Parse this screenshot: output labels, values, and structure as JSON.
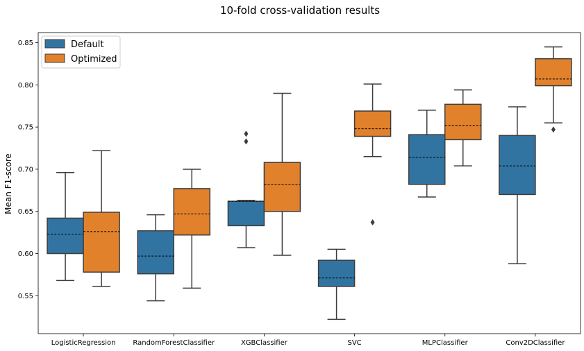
{
  "chart_data": {
    "type": "box",
    "title": "10-fold cross-validation results",
    "xlabel": "",
    "ylabel": "Mean F1-score",
    "ylim": [
      0.505,
      0.862
    ],
    "yticks": [
      "0.55",
      "0.60",
      "0.65",
      "0.70",
      "0.75",
      "0.80",
      "0.85"
    ],
    "ytick_values": [
      0.55,
      0.6,
      0.65,
      0.7,
      0.75,
      0.8,
      0.85
    ],
    "categories": [
      "LogisticRegression",
      "RandomForestClassifier",
      "XGBClassifier",
      "SVC",
      "MLPClassifier",
      "Conv2DClassifier"
    ],
    "legend_position": "top-left",
    "grid": false,
    "series": [
      {
        "name": "Default",
        "color": "#3274a1",
        "boxes": [
          {
            "whislo": 0.568,
            "q1": 0.6,
            "mean": 0.623,
            "q3": 0.642,
            "whishi": 0.696,
            "fliers": []
          },
          {
            "whislo": 0.544,
            "q1": 0.576,
            "mean": 0.597,
            "q3": 0.627,
            "whishi": 0.646,
            "fliers": []
          },
          {
            "whislo": 0.607,
            "q1": 0.633,
            "mean": 0.662,
            "q3": 0.662,
            "whishi": 0.663,
            "fliers": [
              0.733,
              0.742
            ]
          },
          {
            "whislo": 0.522,
            "q1": 0.561,
            "mean": 0.571,
            "q3": 0.592,
            "whishi": 0.605,
            "fliers": []
          },
          {
            "whislo": 0.667,
            "q1": 0.682,
            "mean": 0.714,
            "q3": 0.741,
            "whishi": 0.77,
            "fliers": []
          },
          {
            "whislo": 0.588,
            "q1": 0.67,
            "mean": 0.704,
            "q3": 0.74,
            "whishi": 0.774,
            "fliers": []
          }
        ]
      },
      {
        "name": "Optimized",
        "color": "#e1812c",
        "boxes": [
          {
            "whislo": 0.561,
            "q1": 0.578,
            "mean": 0.626,
            "q3": 0.649,
            "whishi": 0.722,
            "fliers": []
          },
          {
            "whislo": 0.559,
            "q1": 0.622,
            "mean": 0.647,
            "q3": 0.677,
            "whishi": 0.7,
            "fliers": []
          },
          {
            "whislo": 0.598,
            "q1": 0.65,
            "mean": 0.682,
            "q3": 0.708,
            "whishi": 0.79,
            "fliers": []
          },
          {
            "whislo": 0.715,
            "q1": 0.739,
            "mean": 0.748,
            "q3": 0.769,
            "whishi": 0.801,
            "fliers": [
              0.637
            ]
          },
          {
            "whislo": 0.704,
            "q1": 0.735,
            "mean": 0.752,
            "q3": 0.777,
            "whishi": 0.794,
            "fliers": []
          },
          {
            "whislo": 0.755,
            "q1": 0.799,
            "mean": 0.807,
            "q3": 0.831,
            "whishi": 0.845,
            "fliers": [
              0.747
            ]
          }
        ]
      }
    ]
  }
}
